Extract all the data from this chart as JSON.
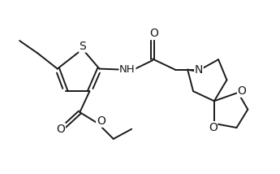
{
  "background_color": "#ffffff",
  "line_color": "#1a1a1a",
  "line_width": 1.4,
  "font_size": 9.5,
  "xlim": [
    0,
    10
  ],
  "ylim": [
    0,
    6.2
  ]
}
